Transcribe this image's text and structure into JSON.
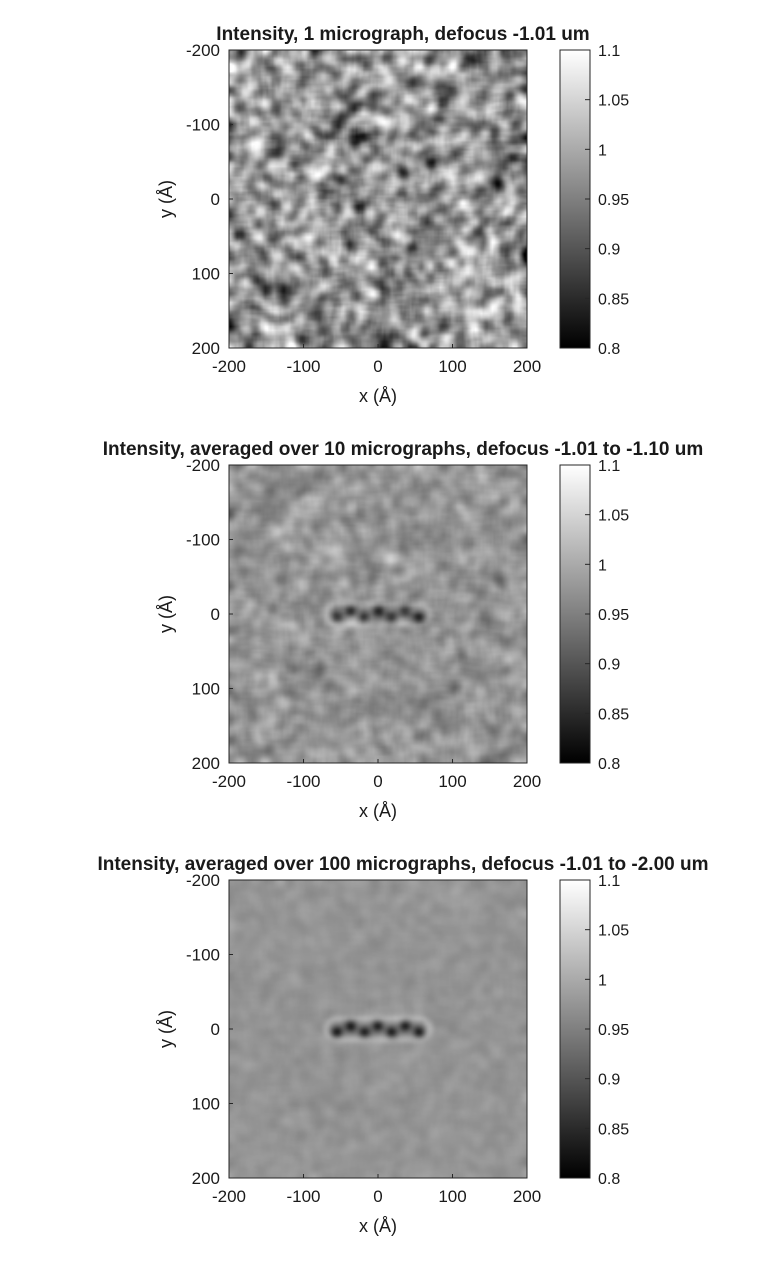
{
  "chart_data": [
    {
      "type": "heatmap",
      "title": "Intensity, 1 micrograph, defocus -1.01 um",
      "xlabel": "x (Å)",
      "ylabel": "y (Å)",
      "xlim": [
        -200,
        200
      ],
      "ylim": [
        -200,
        200
      ],
      "y_reversed": true,
      "xticks": [
        "-200",
        "-100",
        "0",
        "100",
        "200"
      ],
      "yticks": [
        "-200",
        "-100",
        "0",
        "100",
        "200"
      ],
      "colormap": "gray",
      "clim": [
        0.8,
        1.1
      ],
      "colorbar_ticks": [
        "0.8",
        "0.85",
        "0.9",
        "0.95",
        "1",
        "1.05",
        "1.1"
      ],
      "noise_std": 0.045,
      "feature_contrast": 0.1,
      "feature": {
        "x_range": [
          -55,
          55
        ],
        "y_center": 0
      }
    },
    {
      "type": "heatmap",
      "title": "Intensity, averaged over 10 micrographs, defocus -1.01 to -1.10 um",
      "xlabel": "x (Å)",
      "ylabel": "y (Å)",
      "xlim": [
        -200,
        200
      ],
      "ylim": [
        -200,
        200
      ],
      "y_reversed": true,
      "xticks": [
        "-200",
        "-100",
        "0",
        "100",
        "200"
      ],
      "yticks": [
        "-200",
        "-100",
        "0",
        "100",
        "200"
      ],
      "colormap": "gray",
      "clim": [
        0.8,
        1.1
      ],
      "colorbar_ticks": [
        "0.8",
        "0.85",
        "0.9",
        "0.95",
        "1",
        "1.05",
        "1.1"
      ],
      "noise_std": 0.016,
      "feature_contrast": 0.45,
      "feature": {
        "x_range": [
          -55,
          55
        ],
        "y_center": 0
      }
    },
    {
      "type": "heatmap",
      "title": "Intensity, averaged over 100 micrographs, defocus -1.01 to -2.00 um",
      "xlabel": "x (Å)",
      "ylabel": "y (Å)",
      "xlim": [
        -200,
        200
      ],
      "ylim": [
        -200,
        200
      ],
      "y_reversed": true,
      "xticks": [
        "-200",
        "-100",
        "0",
        "100",
        "200"
      ],
      "yticks": [
        "-200",
        "-100",
        "0",
        "100",
        "200"
      ],
      "colormap": "gray",
      "clim": [
        0.8,
        1.1
      ],
      "colorbar_ticks": [
        "0.8",
        "0.85",
        "0.9",
        "0.95",
        "1",
        "1.05",
        "1.1"
      ],
      "noise_std": 0.005,
      "feature_contrast": 0.55,
      "feature": {
        "x_range": [
          -55,
          55
        ],
        "y_center": 0
      }
    }
  ]
}
